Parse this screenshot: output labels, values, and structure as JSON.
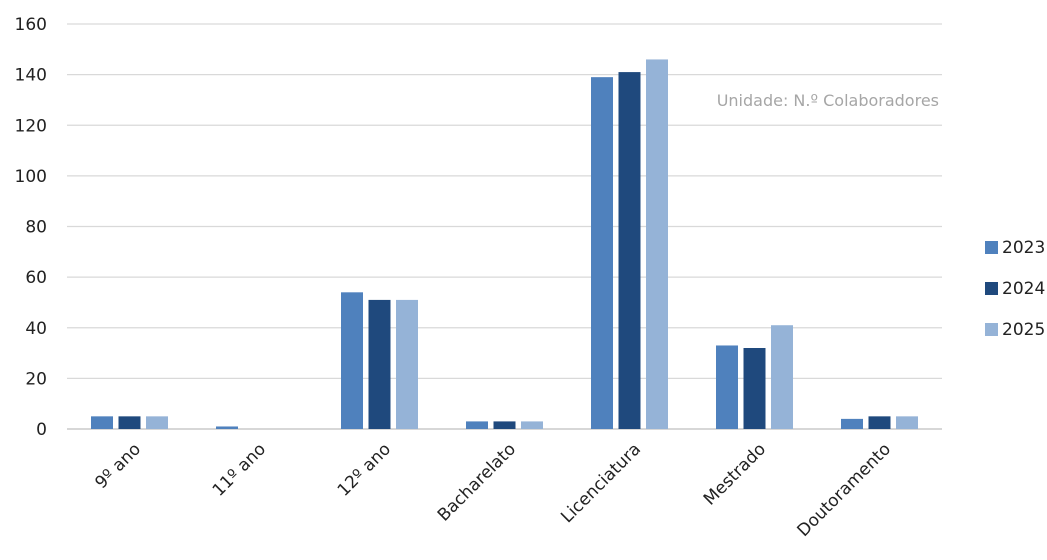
{
  "chart_data": {
    "type": "bar",
    "title": "",
    "xlabel": "",
    "ylabel": "",
    "annotation": "Unidade: N.º Colaboradores",
    "categories": [
      "9º ano",
      "11º ano",
      "12º ano",
      "Bacharelato",
      "Licenciatura",
      "Mestrado",
      "Doutoramento"
    ],
    "series": [
      {
        "name": "2023",
        "color": "#4f81bd",
        "values": [
          5,
          1,
          54,
          3,
          139,
          33,
          4
        ]
      },
      {
        "name": "2024",
        "color": "#1f497d",
        "values": [
          5,
          0,
          51,
          3,
          141,
          32,
          5
        ]
      },
      {
        "name": "2025",
        "color": "#95b3d7",
        "values": [
          5,
          0,
          51,
          3,
          146,
          41,
          5
        ]
      }
    ],
    "ylim": [
      0,
      160
    ],
    "yticks": [
      "0",
      "20",
      "40",
      "60",
      "80",
      "100",
      "120",
      "140",
      "160"
    ],
    "grid": true,
    "legend": "right"
  }
}
